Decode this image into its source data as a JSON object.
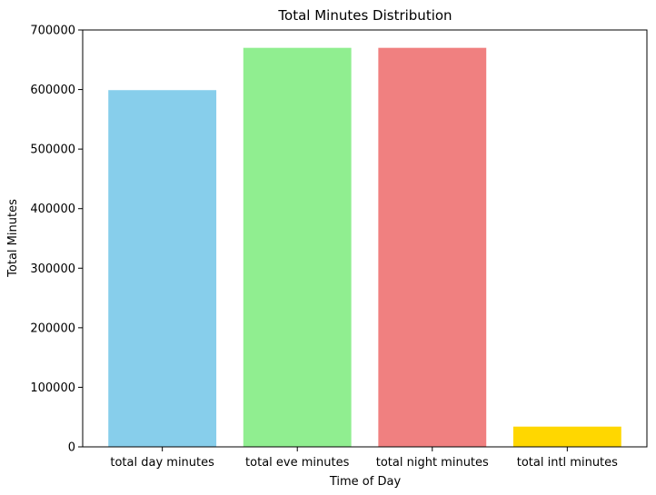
{
  "chart_data": {
    "type": "bar",
    "title": "Total Minutes Distribution",
    "xlabel": "Time of Day",
    "ylabel": "Total Minutes",
    "categories": [
      "total day minutes",
      "total eve minutes",
      "total night minutes",
      "total intl minutes"
    ],
    "values": [
      599000,
      670000,
      670000,
      34000
    ],
    "colors": [
      "#87ceeb",
      "#90ee90",
      "#f08080",
      "#ffd700"
    ],
    "ylim": [
      0,
      700000
    ],
    "yticks": [
      0,
      100000,
      200000,
      300000,
      400000,
      500000,
      600000,
      700000
    ],
    "ytick_labels": [
      "0",
      "100000",
      "200000",
      "300000",
      "400000",
      "500000",
      "600000",
      "700000"
    ],
    "grid": false,
    "legend": "none"
  }
}
